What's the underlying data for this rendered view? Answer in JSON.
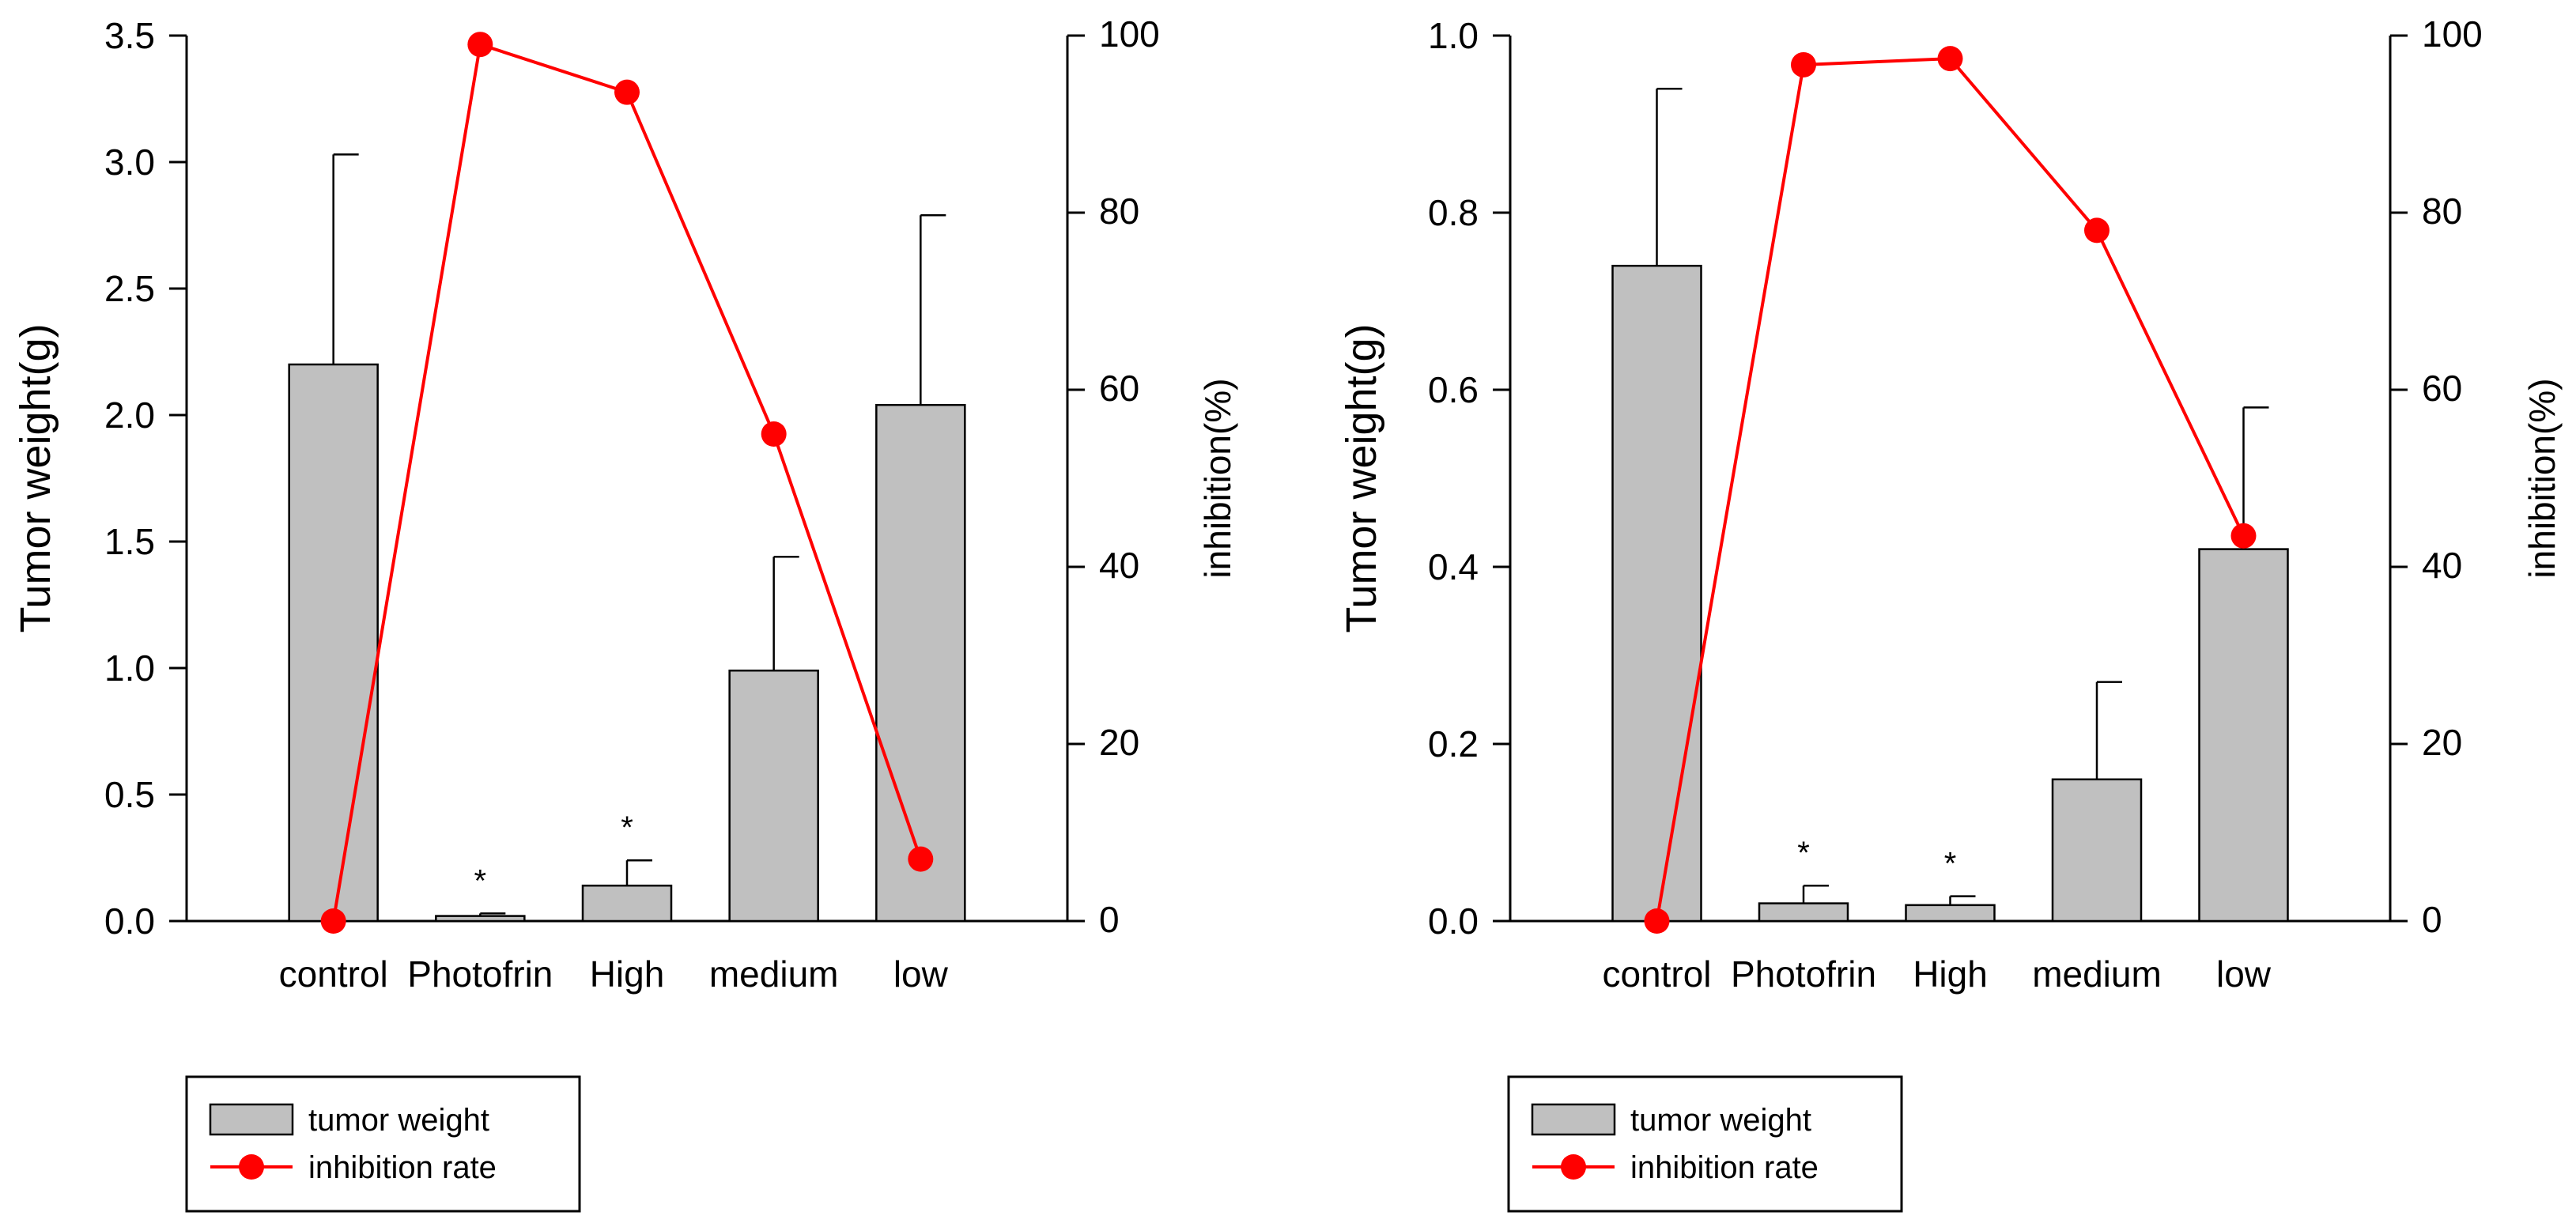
{
  "chart_data": [
    {
      "type": "bar+line",
      "categories": [
        "control",
        "Photofrin",
        "High",
        "medium",
        "low"
      ],
      "ylabel": "Tumor weight(g)",
      "ylim": [
        0,
        3.5
      ],
      "yticks": [
        "0.0",
        "0.5",
        "1.0",
        "1.5",
        "2.0",
        "2.5",
        "3.0",
        "3.5"
      ],
      "y2label": "inhibition(%)",
      "y2lim": [
        0,
        100
      ],
      "y2ticks": [
        "0",
        "20",
        "40",
        "60",
        "80",
        "100"
      ],
      "series": [
        {
          "name": "tumor weight",
          "type": "bar",
          "values": [
            2.2,
            0.02,
            0.14,
            0.99,
            2.04
          ],
          "errors": [
            0.83,
            0.01,
            0.1,
            0.45,
            0.75
          ]
        },
        {
          "name": "inhibition rate",
          "type": "line",
          "axis": "right",
          "values": [
            0,
            99,
            93.6,
            55,
            7
          ]
        }
      ],
      "annotations": [
        "",
        "*",
        "*",
        "",
        ""
      ],
      "colors": {
        "bar": "#c0c0c0",
        "line": "#ff0000"
      },
      "legend": "bottom-left"
    },
    {
      "type": "bar+line",
      "categories": [
        "control",
        "Photofrin",
        "High",
        "medium",
        "low"
      ],
      "ylabel": "Tumor weight(g)",
      "ylim": [
        0,
        1.0
      ],
      "yticks": [
        "0.0",
        "0.2",
        "0.4",
        "0.6",
        "0.8",
        "1.0"
      ],
      "y2label": "inhibition(%)",
      "y2lim": [
        0,
        100
      ],
      "y2ticks": [
        "0",
        "20",
        "40",
        "60",
        "80",
        "100"
      ],
      "series": [
        {
          "name": "tumor weight",
          "type": "bar",
          "values": [
            0.74,
            0.02,
            0.018,
            0.16,
            0.42
          ],
          "errors": [
            0.2,
            0.02,
            0.01,
            0.11,
            0.16
          ]
        },
        {
          "name": "inhibition rate",
          "type": "line",
          "axis": "right",
          "values": [
            0,
            96.7,
            97.4,
            78,
            43.5
          ]
        }
      ],
      "annotations": [
        "",
        "*",
        "*",
        "",
        ""
      ],
      "colors": {
        "bar": "#c0c0c0",
        "line": "#ff0000"
      },
      "legend": "bottom-left"
    }
  ]
}
